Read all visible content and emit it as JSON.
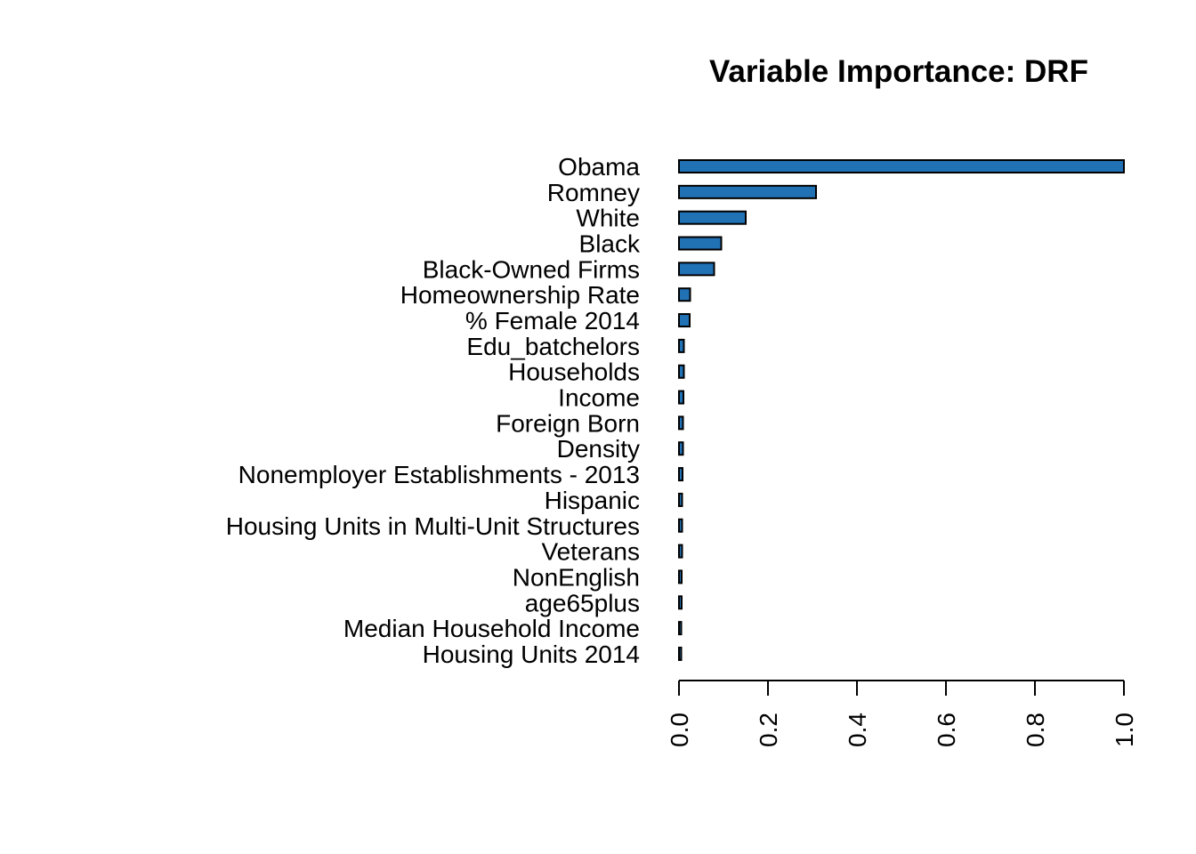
{
  "chart_data": {
    "type": "bar",
    "orientation": "horizontal",
    "title": "Variable Importance: DRF",
    "xlabel": "",
    "ylabel": "",
    "xlim": [
      0,
      1
    ],
    "x_ticks": [
      "0.0",
      "0.2",
      "0.4",
      "0.6",
      "0.8",
      "1.0"
    ],
    "tick_values": [
      0,
      0.2,
      0.4,
      0.6,
      0.8,
      1.0
    ],
    "grid": false,
    "bar_color": "#2171b5",
    "bar_border_color": "#000000",
    "categories": [
      "Obama",
      "Romney",
      "White",
      "Black",
      "Black-Owned Firms",
      "Homeownership Rate",
      "% Female 2014",
      "Edu_batchelors",
      "Households",
      "Income",
      "Foreign Born",
      "Density",
      "Nonemployer Establishments - 2013",
      "Hispanic",
      "Housing Units in Multi-Unit Structures",
      "Veterans",
      "NonEnglish",
      "age65plus",
      "Median Household Income",
      "Housing Units 2014"
    ],
    "values": [
      1.0,
      0.308,
      0.15,
      0.095,
      0.079,
      0.025,
      0.024,
      0.011,
      0.011,
      0.01,
      0.009,
      0.009,
      0.008,
      0.007,
      0.007,
      0.007,
      0.006,
      0.006,
      0.005,
      0.005
    ]
  }
}
